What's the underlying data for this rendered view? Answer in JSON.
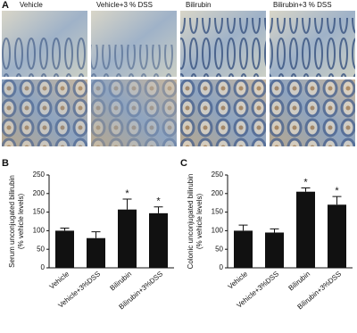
{
  "panel_a": {
    "label": "A",
    "columns": [
      "Vehicle",
      "Vehicle+3 % DSS",
      "Bilirubin",
      "Bilirubin+3 % DSS"
    ]
  },
  "chart_data": [
    {
      "type": "bar",
      "panel_label": "B",
      "ylabel": [
        "Serum unconjugated bilirubin",
        "(% vehicle levels)"
      ],
      "categories": [
        "Vehicle",
        "Vehicle+3%DSS",
        "Bilirubin",
        "Bilirubin+3%DSS"
      ],
      "values": [
        100,
        80,
        157,
        147
      ],
      "errors": [
        7,
        17,
        28,
        17
      ],
      "significance": [
        null,
        null,
        "*",
        "*"
      ],
      "color": "#111111",
      "ylim": [
        0,
        250
      ],
      "yticks": [
        0,
        50,
        100,
        150,
        200,
        250
      ]
    },
    {
      "type": "bar",
      "panel_label": "C",
      "ylabel": [
        "Colonic unconjugated bilirubin",
        "(% vehicle levels)"
      ],
      "categories": [
        "Vehicle",
        "Vehicle+3%DSS",
        "Bilirubin",
        "Bilirubin+3%DSS"
      ],
      "values": [
        100,
        95,
        205,
        170
      ],
      "errors": [
        15,
        10,
        10,
        22
      ],
      "significance": [
        null,
        null,
        "*",
        "*"
      ],
      "color": "#111111",
      "ylim": [
        0,
        250
      ],
      "yticks": [
        0,
        50,
        100,
        150,
        200,
        250
      ]
    }
  ]
}
